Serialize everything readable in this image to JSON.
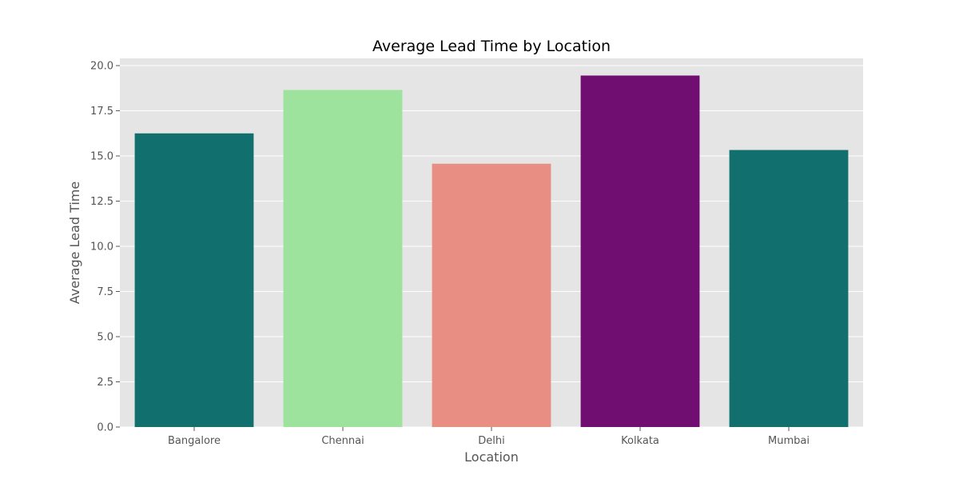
{
  "chart_data": {
    "type": "bar",
    "title": "Average Lead Time by Location",
    "xlabel": "Location",
    "ylabel": "Average Lead Time",
    "categories": [
      "Bangalore",
      "Chennai",
      "Delhi",
      "Kolkata",
      "Mumbai"
    ],
    "values": [
      16.25,
      18.65,
      14.57,
      19.45,
      15.33
    ],
    "colors": [
      "#11706e",
      "#9ee39d",
      "#e88e82",
      "#700f71",
      "#11706e"
    ],
    "yticks": [
      "0.0",
      "2.5",
      "5.0",
      "7.5",
      "10.0",
      "12.5",
      "15.0",
      "17.5",
      "20.0"
    ],
    "ylim": [
      0,
      20.4
    ],
    "grid": true,
    "plot_background": "#e5e5e5"
  }
}
